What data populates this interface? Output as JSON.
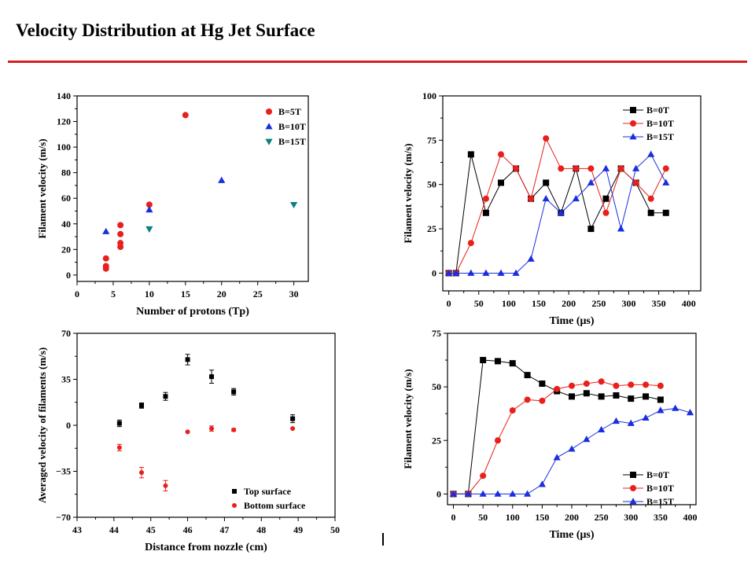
{
  "title": "Velocity Distribution at Hg Jet Surface",
  "chart_data": [
    {
      "type": "scatter",
      "xlabel": "Number of protons (Tp)",
      "ylabel": "Filament velocity (m/s)",
      "xlim": [
        0,
        32
      ],
      "ylim": [
        -5,
        140
      ],
      "xticks": [
        0,
        5,
        10,
        15,
        20,
        25,
        30
      ],
      "yticks": [
        0,
        20,
        40,
        60,
        80,
        100,
        120,
        140
      ],
      "legend_position": "top-right",
      "series": [
        {
          "name": "B=5T",
          "marker": "circle",
          "color": "#e8201c",
          "points": [
            [
              4,
              5
            ],
            [
              4,
              7
            ],
            [
              4,
              13
            ],
            [
              6,
              22
            ],
            [
              6,
              25
            ],
            [
              6,
              32
            ],
            [
              6,
              39
            ],
            [
              10,
              55
            ],
            [
              15,
              125
            ]
          ]
        },
        {
          "name": "B=10T",
          "marker": "triangle-up",
          "color": "#1a2ee0",
          "points": [
            [
              4,
              34
            ],
            [
              10,
              51
            ],
            [
              20,
              74
            ]
          ]
        },
        {
          "name": "B=15T",
          "marker": "triangle-down",
          "color": "#0a8080",
          "points": [
            [
              10,
              36
            ],
            [
              30,
              55
            ]
          ]
        }
      ]
    },
    {
      "type": "line",
      "xlabel": "Time (μs)",
      "ylabel": "Filament velocity (m/s)",
      "xlim": [
        -10,
        420
      ],
      "ylim": [
        -10,
        100
      ],
      "xticks": [
        0,
        50,
        100,
        150,
        200,
        250,
        300,
        350,
        400
      ],
      "yticks": [
        0,
        25,
        50,
        75,
        100
      ],
      "legend_position": "top-right",
      "series": [
        {
          "name": "B=0T",
          "marker": "square",
          "color": "#000000",
          "points": [
            [
              0,
              0
            ],
            [
              12,
              0
            ],
            [
              37,
              67
            ],
            [
              62,
              34
            ],
            [
              87,
              51
            ],
            [
              112,
              59
            ],
            [
              137,
              42
            ],
            [
              162,
              51
            ],
            [
              187,
              34
            ],
            [
              212,
              59
            ],
            [
              237,
              25
            ],
            [
              262,
              42
            ],
            [
              287,
              59
            ],
            [
              312,
              51
            ],
            [
              337,
              34
            ],
            [
              362,
              34
            ]
          ]
        },
        {
          "name": "B=10T",
          "marker": "circle",
          "color": "#e8201c",
          "points": [
            [
              0,
              0
            ],
            [
              12,
              0
            ],
            [
              37,
              17
            ],
            [
              62,
              42
            ],
            [
              87,
              67
            ],
            [
              112,
              59
            ],
            [
              137,
              42
            ],
            [
              162,
              76
            ],
            [
              187,
              59
            ],
            [
              212,
              59
            ],
            [
              237,
              59
            ],
            [
              262,
              34
            ],
            [
              287,
              59
            ],
            [
              312,
              51
            ],
            [
              337,
              42
            ],
            [
              362,
              59
            ]
          ]
        },
        {
          "name": "B=15T",
          "marker": "triangle-up",
          "color": "#1a2ee0",
          "points": [
            [
              0,
              0
            ],
            [
              12,
              0
            ],
            [
              37,
              0
            ],
            [
              62,
              0
            ],
            [
              87,
              0
            ],
            [
              112,
              0
            ],
            [
              137,
              8
            ],
            [
              162,
              42
            ],
            [
              187,
              34
            ],
            [
              212,
              42
            ],
            [
              237,
              51
            ],
            [
              262,
              59
            ],
            [
              287,
              25
            ],
            [
              312,
              59
            ],
            [
              337,
              67
            ],
            [
              362,
              51
            ]
          ]
        }
      ]
    },
    {
      "type": "scatter",
      "xlabel": "Distance from nozzle (cm)",
      "ylabel": "Averaged velocity of filaments (m/s)",
      "xlim": [
        43,
        50
      ],
      "ylim": [
        -70,
        70
      ],
      "xticks": [
        43,
        44,
        45,
        46,
        47,
        48,
        49,
        50
      ],
      "yticks": [
        -70,
        -35,
        0,
        35,
        70
      ],
      "legend_position": "bottom-right",
      "series": [
        {
          "name": "Top surface",
          "marker": "square",
          "color": "#000000",
          "points": [
            [
              44.15,
              1.5
            ],
            [
              44.75,
              15
            ],
            [
              45.4,
              22
            ],
            [
              46,
              50
            ],
            [
              46.65,
              37
            ],
            [
              47.25,
              25.5
            ],
            [
              48.85,
              5
            ]
          ],
          "errors": [
            2.5,
            2,
            3,
            4,
            5,
            2.5,
            3
          ]
        },
        {
          "name": "Bottom surface",
          "marker": "circle",
          "color": "#e8201c",
          "points": [
            [
              44.15,
              -17
            ],
            [
              44.75,
              -36
            ],
            [
              45.4,
              -46
            ],
            [
              46,
              -5
            ],
            [
              46.65,
              -2.5
            ],
            [
              47.25,
              -3.5
            ],
            [
              48.85,
              -2.5
            ]
          ],
          "errors": [
            2.5,
            4,
            4,
            0,
            2,
            1,
            0
          ]
        }
      ]
    },
    {
      "type": "line",
      "xlabel": "Time (μs)",
      "ylabel": "Filament velocity (m/s)",
      "xlim": [
        -10,
        410
      ],
      "ylim": [
        -5,
        75
      ],
      "xticks": [
        0,
        50,
        100,
        150,
        200,
        250,
        300,
        350,
        400
      ],
      "yticks": [
        0,
        25,
        50,
        75
      ],
      "legend_position": "bottom-right",
      "series": [
        {
          "name": "B=0T",
          "marker": "square",
          "color": "#000000",
          "points": [
            [
              0,
              0
            ],
            [
              25,
              0
            ],
            [
              50,
              62.5
            ],
            [
              75,
              62
            ],
            [
              100,
              61
            ],
            [
              125,
              55.5
            ],
            [
              150,
              51.5
            ],
            [
              175,
              48
            ],
            [
              200,
              45.5
            ],
            [
              225,
              47
            ],
            [
              250,
              45.5
            ],
            [
              275,
              46
            ],
            [
              300,
              44.5
            ],
            [
              325,
              45.5
            ],
            [
              350,
              44
            ]
          ]
        },
        {
          "name": "B=10T",
          "marker": "circle",
          "color": "#e8201c",
          "points": [
            [
              0,
              0
            ],
            [
              25,
              0
            ],
            [
              50,
              8.5
            ],
            [
              75,
              25
            ],
            [
              100,
              39
            ],
            [
              125,
              44
            ],
            [
              150,
              43.5
            ],
            [
              175,
              49
            ],
            [
              200,
              50.5
            ],
            [
              225,
              51.5
            ],
            [
              250,
              52.5
            ],
            [
              275,
              50.5
            ],
            [
              300,
              51
            ],
            [
              325,
              51
            ],
            [
              350,
              50.5
            ]
          ]
        },
        {
          "name": "B=15T",
          "marker": "triangle-up",
          "color": "#1a2ee0",
          "points": [
            [
              0,
              0
            ],
            [
              25,
              0
            ],
            [
              50,
              0
            ],
            [
              75,
              0
            ],
            [
              100,
              0
            ],
            [
              125,
              0
            ],
            [
              150,
              4.5
            ],
            [
              175,
              17
            ],
            [
              200,
              21
            ],
            [
              225,
              25.5
            ],
            [
              250,
              30
            ],
            [
              275,
              34
            ],
            [
              300,
              33
            ],
            [
              325,
              35.5
            ],
            [
              350,
              39
            ],
            [
              375,
              40
            ],
            [
              400,
              38
            ]
          ]
        }
      ]
    }
  ]
}
